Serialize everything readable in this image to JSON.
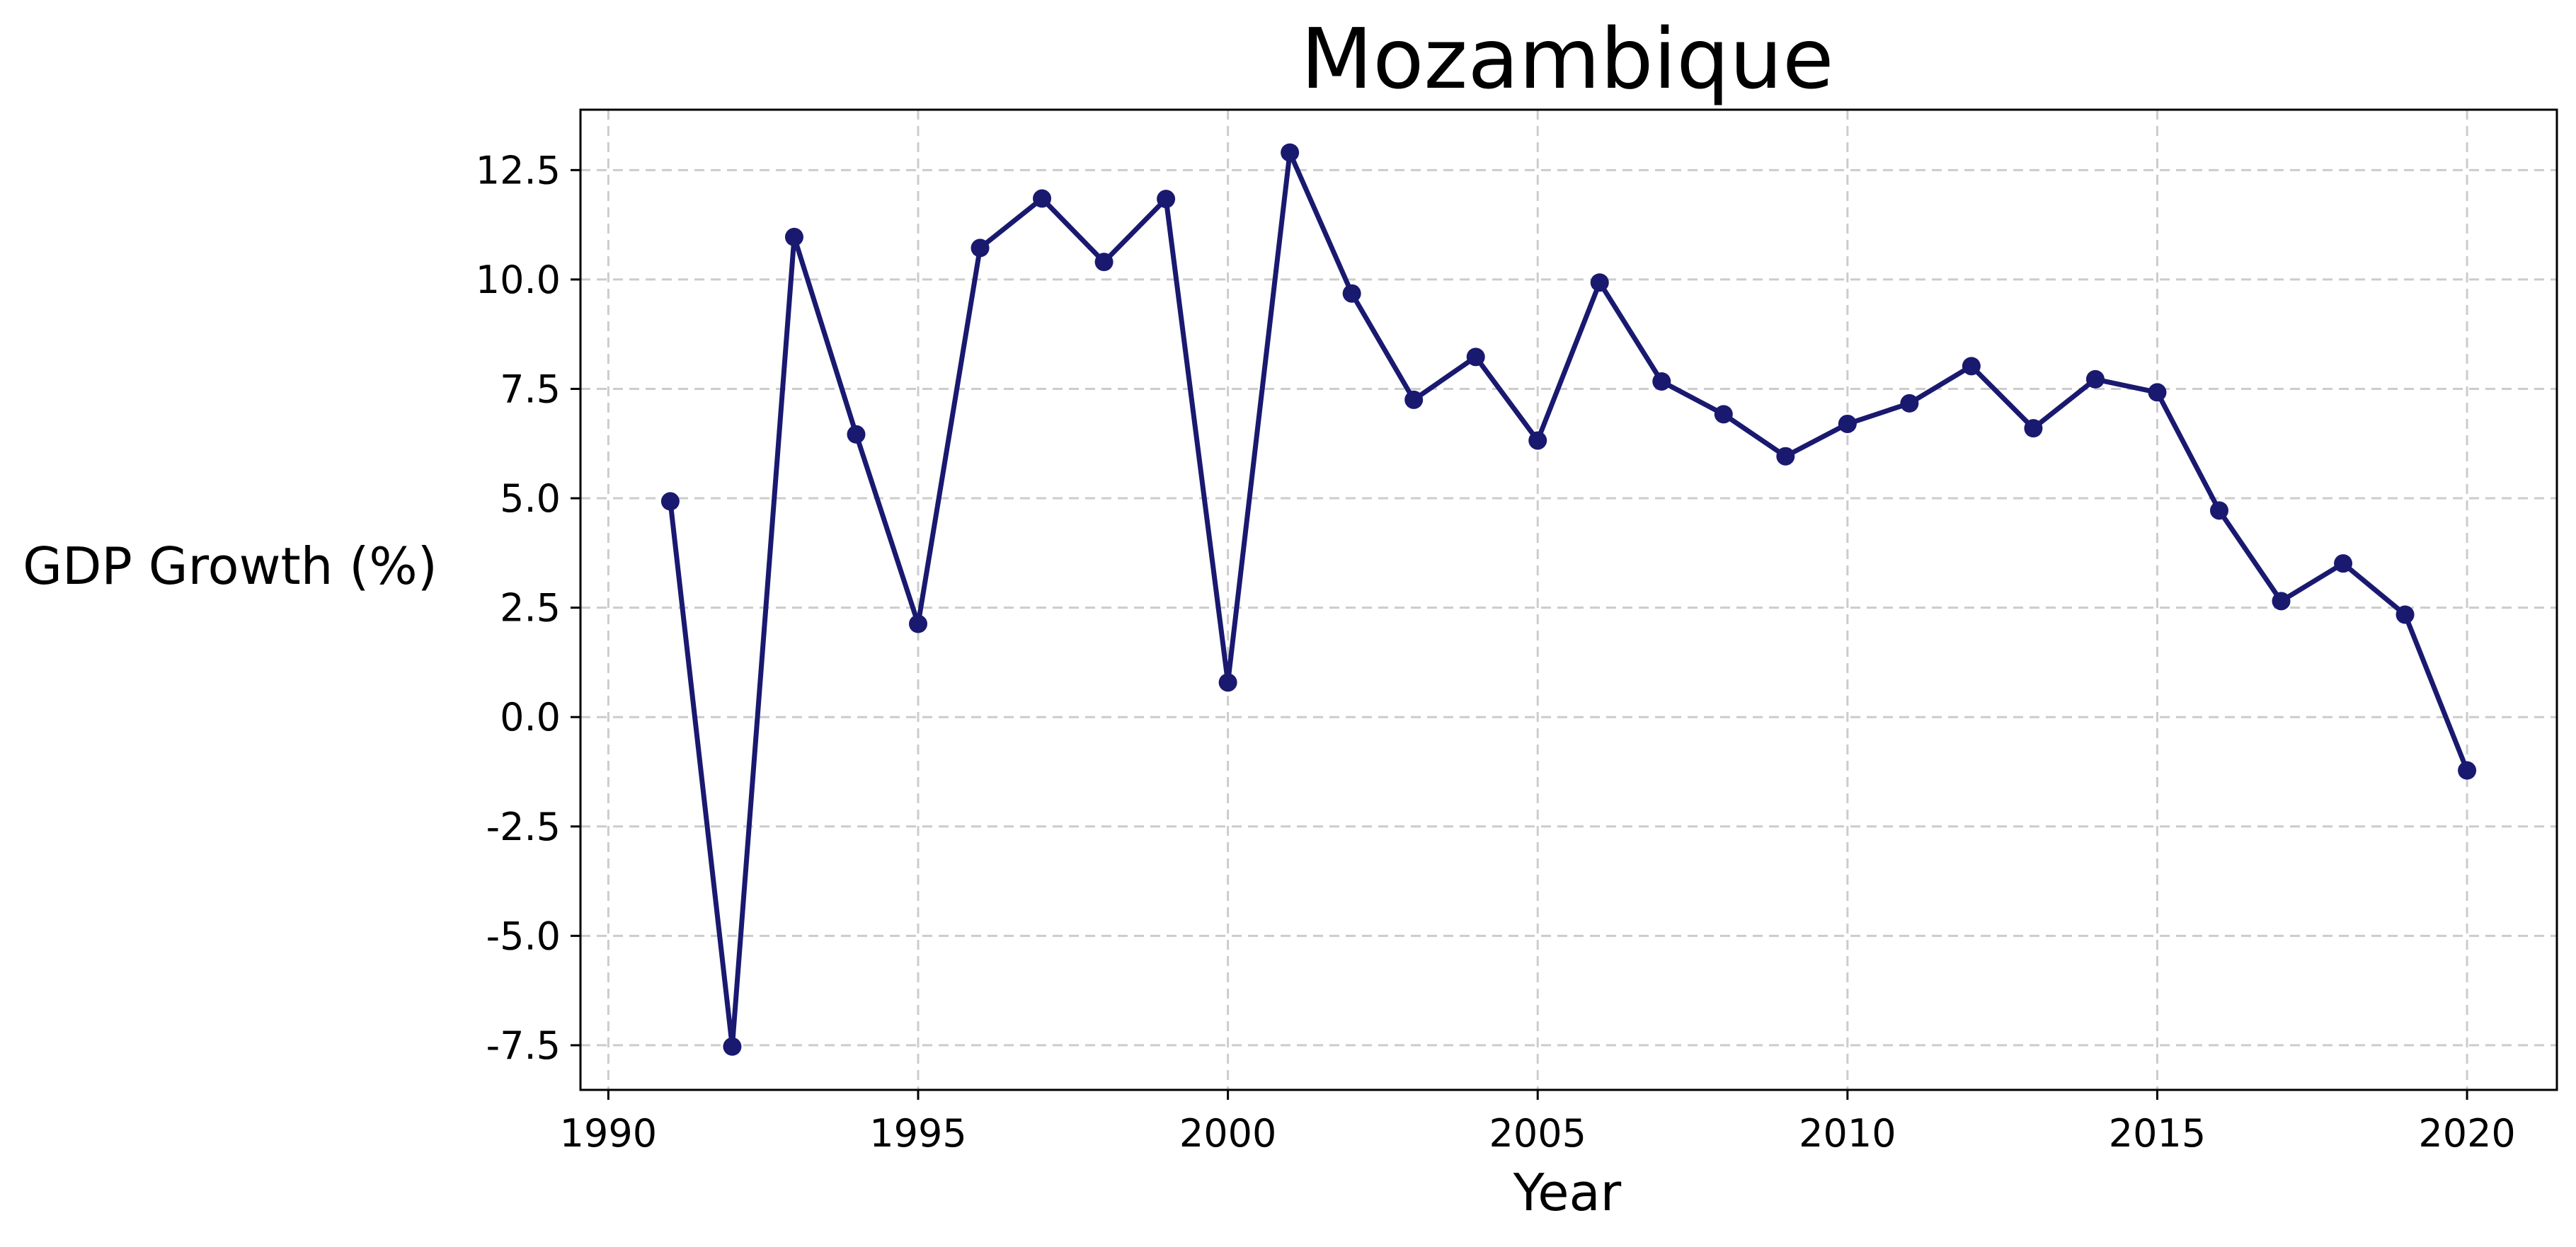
{
  "chart_data": {
    "type": "line",
    "title": "Mozambique",
    "xlabel": "Year",
    "ylabel": "GDP Growth (%)",
    "xlim": [
      1989.55,
      2021.45
    ],
    "ylim": [
      -8.52,
      13.88
    ],
    "xticks": [
      1990,
      1995,
      2000,
      2005,
      2010,
      2015,
      2020
    ],
    "yticks": [
      -7.5,
      -5.0,
      -2.5,
      0.0,
      2.5,
      5.0,
      7.5,
      10.0,
      12.5
    ],
    "grid": true,
    "line_color": "#191970",
    "series": [
      {
        "x": [
          1991,
          1992,
          1993,
          1994,
          1995,
          1996,
          1997,
          1998,
          1999,
          2000,
          2001,
          2002,
          2003,
          2004,
          2005,
          2006,
          2007,
          2008,
          2009,
          2010,
          2011,
          2012,
          2013,
          2014,
          2015,
          2016,
          2017,
          2018,
          2019,
          2020
        ],
        "values": [
          4.93,
          -7.53,
          10.97,
          6.46,
          2.13,
          10.72,
          11.85,
          10.4,
          11.84,
          0.79,
          12.9,
          9.68,
          7.25,
          8.23,
          6.32,
          9.93,
          7.67,
          6.92,
          5.96,
          6.7,
          7.17,
          8.02,
          6.6,
          7.72,
          7.42,
          4.72,
          2.65,
          3.51,
          2.34,
          -1.22
        ]
      }
    ]
  }
}
